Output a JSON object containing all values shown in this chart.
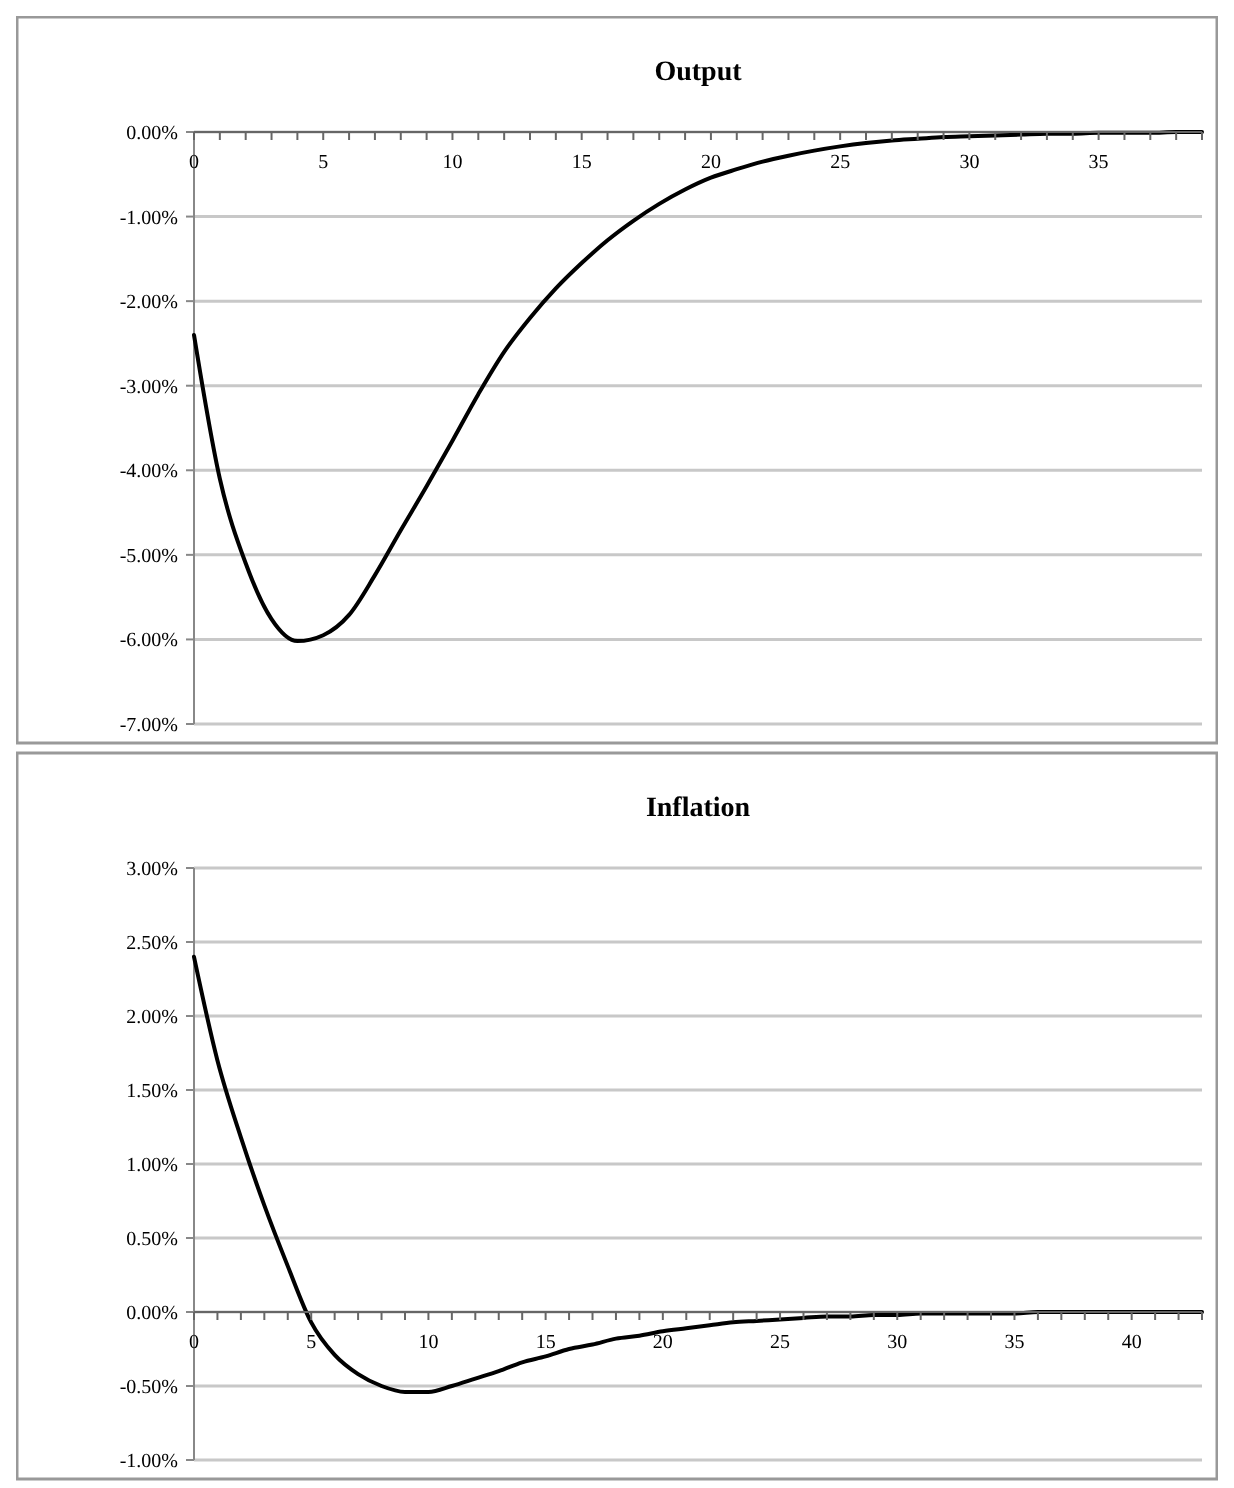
{
  "chart_data": [
    {
      "type": "line",
      "title": "Output",
      "grid": "y",
      "x": [
        0,
        1,
        2,
        3,
        4,
        5,
        6,
        7,
        8,
        9,
        10,
        11,
        12,
        13,
        14,
        15,
        16,
        17,
        18,
        19,
        20,
        21,
        22,
        23,
        24,
        25,
        26,
        27,
        28,
        29,
        30,
        31,
        32,
        33,
        34,
        35,
        36,
        37,
        38,
        39
      ],
      "series": [
        {
          "color": "#000000",
          "values": [
            -2.4,
            -4.1,
            -5.1,
            -5.76,
            -6.02,
            -5.95,
            -5.71,
            -5.24,
            -4.71,
            -4.19,
            -3.65,
            -3.1,
            -2.6,
            -2.2,
            -1.85,
            -1.55,
            -1.28,
            -1.05,
            -0.85,
            -0.68,
            -0.54,
            -0.44,
            -0.35,
            -0.28,
            -0.22,
            -0.17,
            -0.13,
            -0.1,
            -0.08,
            -0.06,
            -0.05,
            -0.04,
            -0.03,
            -0.02,
            -0.02,
            -0.01,
            -0.01,
            -0.01,
            0,
            0
          ]
        }
      ],
      "xlim": [
        0,
        39
      ],
      "xticks": [
        0,
        {
          "value": 1,
          "label": null
        },
        {
          "value": 2,
          "label": null
        },
        {
          "value": 3,
          "label": null
        },
        {
          "value": 4,
          "label": null
        },
        5,
        {
          "value": 6,
          "label": null
        },
        {
          "value": 7,
          "label": null
        },
        {
          "value": 8,
          "label": null
        },
        {
          "value": 9,
          "label": null
        },
        10,
        {
          "value": 11,
          "label": null
        },
        {
          "value": 12,
          "label": null
        },
        {
          "value": 13,
          "label": null
        },
        {
          "value": 14,
          "label": null
        },
        15,
        {
          "value": 16,
          "label": null
        },
        {
          "value": 17,
          "label": null
        },
        {
          "value": 18,
          "label": null
        },
        {
          "value": 19,
          "label": null
        },
        20,
        {
          "value": 21,
          "label": null
        },
        {
          "value": 22,
          "label": null
        },
        {
          "value": 23,
          "label": null
        },
        {
          "value": 24,
          "label": null
        },
        25,
        {
          "value": 26,
          "label": null
        },
        {
          "value": 27,
          "label": null
        },
        {
          "value": 28,
          "label": null
        },
        {
          "value": 29,
          "label": null
        },
        30,
        {
          "value": 31,
          "label": null
        },
        {
          "value": 32,
          "label": null
        },
        {
          "value": 33,
          "label": null
        },
        {
          "value": 34,
          "label": null
        },
        35,
        {
          "value": 36,
          "label": null
        },
        {
          "value": 37,
          "label": null
        },
        {
          "value": 38,
          "label": null
        },
        {
          "value": 39,
          "label": null
        }
      ],
      "ylim": [
        -7,
        0
      ],
      "yticks": [
        {
          "value": -7,
          "label": "-7.00%"
        },
        {
          "value": -6,
          "label": "-6.00%"
        },
        {
          "value": -5,
          "label": "-5.00%"
        },
        {
          "value": -4,
          "label": "-4.00%"
        },
        {
          "value": -3,
          "label": "-3.00%"
        },
        {
          "value": -2,
          "label": "-2.00%"
        },
        {
          "value": -1,
          "label": "-1.00%"
        },
        {
          "value": 0,
          "label": "0.00%"
        }
      ]
    },
    {
      "type": "line",
      "title": "Inflation",
      "grid": "y",
      "x": [
        0,
        1,
        2,
        3,
        4,
        5,
        6,
        7,
        8,
        9,
        10,
        11,
        12,
        13,
        14,
        15,
        16,
        17,
        18,
        19,
        20,
        21,
        22,
        23,
        24,
        25,
        26,
        27,
        28,
        29,
        30,
        31,
        32,
        33,
        34,
        35,
        36,
        37,
        38,
        39,
        40,
        41,
        42,
        43
      ],
      "series": [
        {
          "color": "#000000",
          "values": [
            2.4,
            1.7,
            1.18,
            0.72,
            0.31,
            -0.07,
            -0.29,
            -0.42,
            -0.5,
            -0.54,
            -0.54,
            -0.5,
            -0.45,
            -0.4,
            -0.34,
            -0.3,
            -0.25,
            -0.22,
            -0.18,
            -0.16,
            -0.13,
            -0.11,
            -0.09,
            -0.07,
            -0.06,
            -0.05,
            -0.04,
            -0.03,
            -0.03,
            -0.02,
            -0.02,
            -0.01,
            -0.01,
            -0.01,
            -0.01,
            -0.01,
            0,
            0,
            0,
            0,
            0,
            0,
            0,
            0
          ]
        }
      ],
      "xlim": [
        0,
        43
      ],
      "xticks": [
        0,
        {
          "value": 1,
          "label": null
        },
        {
          "value": 2,
          "label": null
        },
        {
          "value": 3,
          "label": null
        },
        {
          "value": 4,
          "label": null
        },
        5,
        {
          "value": 6,
          "label": null
        },
        {
          "value": 7,
          "label": null
        },
        {
          "value": 8,
          "label": null
        },
        {
          "value": 9,
          "label": null
        },
        10,
        {
          "value": 11,
          "label": null
        },
        {
          "value": 12,
          "label": null
        },
        {
          "value": 13,
          "label": null
        },
        {
          "value": 14,
          "label": null
        },
        15,
        {
          "value": 16,
          "label": null
        },
        {
          "value": 17,
          "label": null
        },
        {
          "value": 18,
          "label": null
        },
        {
          "value": 19,
          "label": null
        },
        20,
        {
          "value": 21,
          "label": null
        },
        {
          "value": 22,
          "label": null
        },
        {
          "value": 23,
          "label": null
        },
        {
          "value": 24,
          "label": null
        },
        25,
        {
          "value": 26,
          "label": null
        },
        {
          "value": 27,
          "label": null
        },
        {
          "value": 28,
          "label": null
        },
        {
          "value": 29,
          "label": null
        },
        30,
        {
          "value": 31,
          "label": null
        },
        {
          "value": 32,
          "label": null
        },
        {
          "value": 33,
          "label": null
        },
        {
          "value": 34,
          "label": null
        },
        35,
        {
          "value": 36,
          "label": null
        },
        {
          "value": 37,
          "label": null
        },
        {
          "value": 38,
          "label": null
        },
        {
          "value": 39,
          "label": null
        },
        40,
        {
          "value": 41,
          "label": null
        },
        {
          "value": 42,
          "label": null
        },
        {
          "value": 43,
          "label": null
        }
      ],
      "ylim": [
        -1,
        3
      ],
      "yticks": [
        {
          "value": -1,
          "label": "-1.00%"
        },
        {
          "value": -0.5,
          "label": "-0.50%"
        },
        {
          "value": 0,
          "label": "0.00%"
        },
        {
          "value": 0.5,
          "label": "0.50%"
        },
        {
          "value": 1,
          "label": "1.00%"
        },
        {
          "value": 1.5,
          "label": "1.50%"
        },
        {
          "value": 2,
          "label": "2.00%"
        },
        {
          "value": 2.5,
          "label": "2.50%"
        },
        {
          "value": 3,
          "label": "3.00%"
        }
      ]
    }
  ]
}
